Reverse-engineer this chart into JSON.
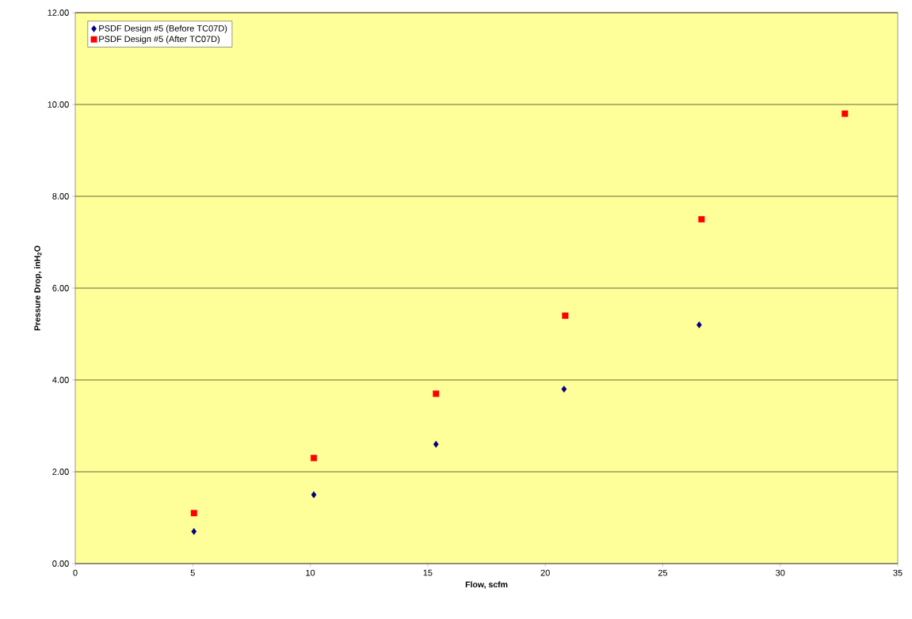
{
  "chart_data": {
    "type": "scatter",
    "xlabel": "Flow, scfm",
    "ylabel": "Pressure Drop, inH$_{2}$O",
    "xlim": [
      0,
      35
    ],
    "xticks": [
      0,
      5,
      10,
      15,
      20,
      25,
      30,
      35
    ],
    "ylim": [
      0,
      12
    ],
    "yticks": [
      {
        "value": 0,
        "label": "0.00"
      },
      {
        "value": 2,
        "label": "2.00"
      },
      {
        "value": 4,
        "label": "4.00"
      },
      {
        "value": 6,
        "label": "6.00"
      },
      {
        "value": 8,
        "label": "8.00"
      },
      {
        "value": 10,
        "label": "10.00"
      },
      {
        "value": 12,
        "label": "12.00"
      }
    ],
    "grid": "y",
    "legend": "top left",
    "series": [
      {
        "name": "PSDF Design #5 (Before TC07D)",
        "color": "#000080",
        "marker": "diamond",
        "x": [
          5.05,
          10.15,
          15.35,
          20.8,
          26.55
        ],
        "values": [
          0.7,
          1.5,
          2.6,
          3.8,
          5.2
        ]
      },
      {
        "name": "PSDF Design #5 (After TC07D)",
        "color": "#ff0000",
        "marker": "square",
        "x": [
          5.05,
          10.15,
          15.35,
          20.85,
          26.65,
          32.75
        ],
        "values": [
          1.1,
          2.3,
          3.7,
          5.4,
          7.5,
          9.8
        ]
      }
    ]
  }
}
